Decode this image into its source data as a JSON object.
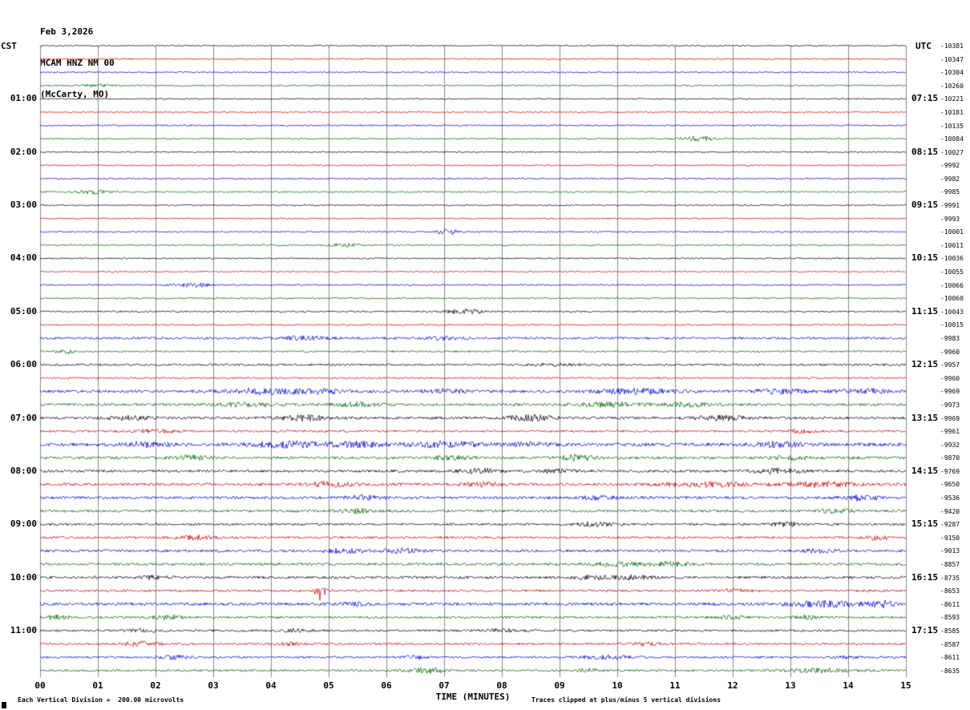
{
  "header": {
    "date": "Feb 3,2026",
    "station": "MCAM HNZ NM 00",
    "location": "(McCarty, MO)"
  },
  "axes": {
    "left_label": "CST",
    "right_label": "UTC",
    "x_label": "TIME (MINUTES)",
    "x_ticks": [
      "00",
      "01",
      "02",
      "03",
      "04",
      "05",
      "06",
      "07",
      "08",
      "09",
      "10",
      "11",
      "12",
      "13",
      "14",
      "15"
    ],
    "left_times": [
      {
        "row": 4,
        "label": "01:00"
      },
      {
        "row": 8,
        "label": "02:00"
      },
      {
        "row": 12,
        "label": "03:00"
      },
      {
        "row": 16,
        "label": "04:00"
      },
      {
        "row": 20,
        "label": "05:00"
      },
      {
        "row": 24,
        "label": "06:00"
      },
      {
        "row": 28,
        "label": "07:00"
      },
      {
        "row": 32,
        "label": "08:00"
      },
      {
        "row": 36,
        "label": "09:00"
      },
      {
        "row": 40,
        "label": "10:00"
      },
      {
        "row": 44,
        "label": "11:00"
      }
    ],
    "right_times": [
      {
        "row": 4,
        "label": "07:15"
      },
      {
        "row": 8,
        "label": "08:15"
      },
      {
        "row": 12,
        "label": "09:15"
      },
      {
        "row": 16,
        "label": "10:15"
      },
      {
        "row": 20,
        "label": "11:15"
      },
      {
        "row": 24,
        "label": "12:15"
      },
      {
        "row": 28,
        "label": "13:15"
      },
      {
        "row": 32,
        "label": "14:15"
      },
      {
        "row": 36,
        "label": "15:15"
      },
      {
        "row": 40,
        "label": "16:15"
      },
      {
        "row": 44,
        "label": "17:15"
      }
    ]
  },
  "footer": {
    "left": "Each Vertical Division =  200.00 microvolts",
    "right": "Traces clipped at plus/minus 5 vertical divisions"
  },
  "chart_data": {
    "type": "line",
    "subtype": "helicorder-seismogram",
    "title": "MCAM HNZ NM 00 (McCarty, MO) Feb 3,2026",
    "xlabel": "TIME (MINUTES)",
    "x_range_minutes": [
      0,
      15
    ],
    "minutes_per_row": 15,
    "rows_count": 48,
    "start_time_cst": "00:00",
    "utc_offset_hours": 6,
    "grid": true,
    "grid_color": "#8a8a8a",
    "trace_colors_cycle": [
      "#000000",
      "#cc0000",
      "#0000cc",
      "#006600"
    ],
    "row_fields": "v = right-hand baseline offset value (microvolt counts), n = background noise amplitude (vertical divisions approx), b = bursts as [minute, half-width-min, amplitude]",
    "rows": [
      {
        "v": "-10381",
        "n": 0.8,
        "b": []
      },
      {
        "v": "-10347",
        "n": 0.8,
        "b": []
      },
      {
        "v": "-10304",
        "n": 0.8,
        "b": []
      },
      {
        "v": "-10260",
        "n": 0.9,
        "b": [
          [
            1.0,
            0.4,
            1.5
          ]
        ]
      },
      {
        "v": "-10221",
        "n": 0.8,
        "b": []
      },
      {
        "v": "-10181",
        "n": 0.8,
        "b": []
      },
      {
        "v": "-10135",
        "n": 0.9,
        "b": []
      },
      {
        "v": "-10084",
        "n": 0.9,
        "b": [
          [
            11.4,
            0.5,
            2.5
          ]
        ]
      },
      {
        "v": "-10027",
        "n": 0.8,
        "b": []
      },
      {
        "v": "-9992",
        "n": 0.8,
        "b": []
      },
      {
        "v": "-9982",
        "n": 0.9,
        "b": []
      },
      {
        "v": "-9985",
        "n": 0.9,
        "b": [
          [
            0.95,
            0.4,
            2.2
          ]
        ]
      },
      {
        "v": "-9991",
        "n": 0.8,
        "b": []
      },
      {
        "v": "-9993",
        "n": 0.8,
        "b": []
      },
      {
        "v": "-10001",
        "n": 0.9,
        "b": [
          [
            7.05,
            0.35,
            2.8
          ]
        ]
      },
      {
        "v": "-10011",
        "n": 0.9,
        "b": [
          [
            5.3,
            0.4,
            2.2
          ]
        ]
      },
      {
        "v": "-10036",
        "n": 0.9,
        "b": []
      },
      {
        "v": "-10055",
        "n": 0.8,
        "b": []
      },
      {
        "v": "-10066",
        "n": 0.9,
        "b": [
          [
            2.65,
            0.45,
            2.8
          ]
        ]
      },
      {
        "v": "-10060",
        "n": 0.9,
        "b": []
      },
      {
        "v": "-10043",
        "n": 1.0,
        "b": [
          [
            7.35,
            0.5,
            2.8
          ]
        ]
      },
      {
        "v": "-10015",
        "n": 0.9,
        "b": []
      },
      {
        "v": "-9983",
        "n": 1.4,
        "b": [
          [
            4.6,
            0.6,
            2.0
          ],
          [
            7.0,
            0.5,
            1.8
          ]
        ]
      },
      {
        "v": "-9960",
        "n": 1.1,
        "b": [
          [
            0.45,
            0.3,
            2.0
          ]
        ]
      },
      {
        "v": "-9957",
        "n": 1.3,
        "b": [
          [
            9.0,
            0.6,
            1.2
          ]
        ]
      },
      {
        "v": "-9960",
        "n": 1.1,
        "b": []
      },
      {
        "v": "-9969",
        "n": 1.8,
        "b": [
          [
            3.8,
            0.9,
            2.8
          ],
          [
            4.8,
            0.7,
            2.4
          ],
          [
            7.0,
            0.6,
            2.0
          ],
          [
            10.3,
            1.0,
            2.8
          ],
          [
            12.8,
            0.7,
            2.2
          ],
          [
            14.2,
            0.7,
            2.8
          ]
        ]
      },
      {
        "v": "-9973",
        "n": 1.6,
        "b": [
          [
            3.6,
            0.8,
            2.2
          ],
          [
            5.5,
            0.6,
            2.0
          ],
          [
            9.8,
            0.9,
            2.4
          ],
          [
            11.2,
            0.7,
            2.0
          ]
        ]
      },
      {
        "v": "-9969",
        "n": 1.6,
        "b": [
          [
            1.5,
            0.6,
            2.0
          ],
          [
            4.6,
            0.8,
            2.8
          ],
          [
            8.5,
            0.6,
            3.2
          ],
          [
            11.8,
            0.7,
            2.4
          ]
        ]
      },
      {
        "v": "-9961",
        "n": 1.3,
        "b": [
          [
            2.0,
            0.6,
            1.8
          ],
          [
            13.2,
            0.5,
            1.8
          ]
        ]
      },
      {
        "v": "-9932",
        "n": 2.0,
        "b": [
          [
            1.8,
            0.7,
            2.2
          ],
          [
            4.3,
            1.0,
            3.0
          ],
          [
            5.5,
            0.7,
            2.6
          ],
          [
            7.0,
            0.9,
            3.0
          ],
          [
            8.5,
            0.6,
            2.2
          ],
          [
            12.8,
            0.8,
            2.6
          ]
        ]
      },
      {
        "v": "-9870",
        "n": 1.7,
        "b": [
          [
            2.6,
            0.5,
            2.2
          ],
          [
            7.1,
            0.5,
            2.2
          ],
          [
            9.3,
            0.5,
            3.0
          ],
          [
            13.0,
            0.5,
            1.8
          ]
        ]
      },
      {
        "v": "-9769",
        "n": 1.6,
        "b": [
          [
            7.6,
            0.6,
            2.6
          ],
          [
            9.0,
            0.5,
            1.8
          ],
          [
            12.8,
            0.7,
            2.6
          ]
        ]
      },
      {
        "v": "-9650",
        "n": 1.7,
        "b": [
          [
            5.0,
            0.6,
            2.6
          ],
          [
            7.6,
            0.5,
            2.2
          ],
          [
            11.5,
            1.2,
            2.2
          ],
          [
            13.5,
            0.9,
            2.6
          ]
        ]
      },
      {
        "v": "-9536",
        "n": 1.7,
        "b": [
          [
            5.6,
            0.5,
            2.2
          ],
          [
            9.7,
            0.5,
            1.8
          ],
          [
            14.2,
            0.5,
            2.6
          ]
        ]
      },
      {
        "v": "-9420",
        "n": 1.6,
        "b": [
          [
            5.5,
            0.5,
            2.2
          ],
          [
            13.8,
            0.5,
            1.8
          ]
        ]
      },
      {
        "v": "-9287",
        "n": 1.4,
        "b": [
          [
            9.6,
            0.5,
            2.2
          ],
          [
            12.9,
            0.45,
            2.2
          ]
        ]
      },
      {
        "v": "-9150",
        "n": 1.4,
        "b": [
          [
            2.7,
            0.5,
            2.2
          ],
          [
            14.5,
            0.35,
            3.0
          ]
        ]
      },
      {
        "v": "-9013",
        "n": 1.6,
        "b": [
          [
            5.3,
            0.6,
            2.2
          ],
          [
            6.3,
            0.5,
            2.2
          ],
          [
            13.5,
            0.45,
            1.8
          ]
        ]
      },
      {
        "v": "-8857",
        "n": 1.6,
        "b": [
          [
            10.0,
            0.7,
            2.2
          ],
          [
            10.9,
            0.5,
            2.2
          ]
        ]
      },
      {
        "v": "-8735",
        "n": 1.6,
        "b": [
          [
            2.0,
            0.45,
            1.8
          ],
          [
            9.6,
            0.5,
            2.2
          ],
          [
            10.3,
            0.45,
            2.2
          ]
        ]
      },
      {
        "v": "-8653",
        "n": 1.4,
        "b": [
          [
            4.85,
            0.12,
            11.0
          ],
          [
            12.0,
            0.45,
            1.8
          ]
        ]
      },
      {
        "v": "-8611",
        "n": 1.8,
        "b": [
          [
            5.5,
            0.5,
            1.8
          ],
          [
            13.6,
            1.0,
            3.0
          ],
          [
            14.6,
            0.35,
            3.0
          ]
        ]
      },
      {
        "v": "-8593",
        "n": 1.4,
        "b": [
          [
            0.3,
            0.35,
            2.2
          ],
          [
            2.2,
            0.45,
            2.2
          ],
          [
            12.0,
            0.45,
            1.8
          ],
          [
            13.3,
            0.35,
            1.8
          ]
        ]
      },
      {
        "v": "-8585",
        "n": 1.3,
        "b": [
          [
            1.8,
            0.45,
            1.8
          ],
          [
            4.5,
            0.45,
            1.8
          ],
          [
            8.0,
            0.5,
            1.8
          ]
        ]
      },
      {
        "v": "-8587",
        "n": 1.3,
        "b": [
          [
            1.75,
            0.45,
            3.0
          ],
          [
            4.3,
            0.35,
            1.8
          ],
          [
            10.5,
            0.45,
            1.8
          ]
        ]
      },
      {
        "v": "-8611",
        "n": 1.3,
        "b": [
          [
            2.3,
            0.45,
            2.2
          ],
          [
            6.5,
            0.35,
            1.8
          ],
          [
            9.8,
            0.7,
            1.8
          ],
          [
            14.0,
            0.35,
            1.8
          ]
        ]
      },
      {
        "v": "-8635",
        "n": 1.3,
        "b": [
          [
            6.7,
            0.5,
            3.0
          ],
          [
            9.5,
            0.35,
            1.8
          ],
          [
            13.5,
            0.9,
            2.2
          ]
        ]
      }
    ]
  }
}
